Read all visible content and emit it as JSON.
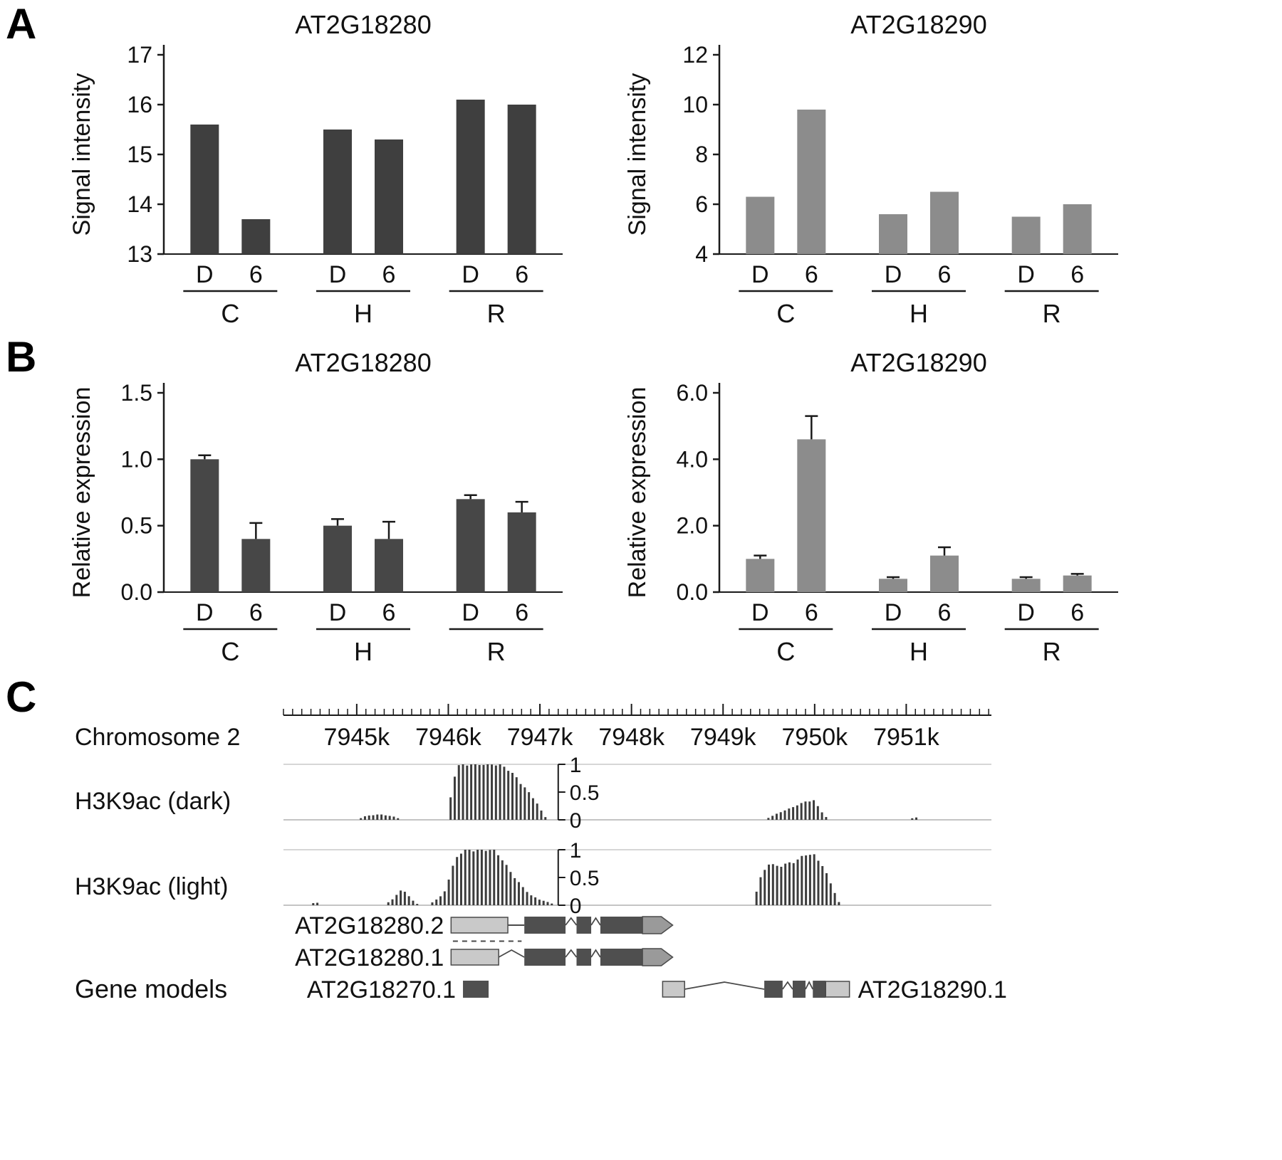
{
  "panel_labels": {
    "a": "A",
    "b": "B",
    "c": "C"
  },
  "chart_data": [
    {
      "panel": "A",
      "position": "left",
      "type": "bar",
      "title": "AT2G18280",
      "ylabel": "Signal intensity",
      "ylim": [
        13,
        17
      ],
      "ytick_values": [
        13,
        14,
        15,
        16,
        17
      ],
      "ytick_labels": [
        "13",
        "14",
        "15",
        "16",
        "17"
      ],
      "bar_color": "#3f3f3f",
      "groups": [
        {
          "label": "C",
          "bars": [
            {
              "label": "D",
              "value": 15.6
            },
            {
              "label": "6",
              "value": 13.7
            }
          ]
        },
        {
          "label": "H",
          "bars": [
            {
              "label": "D",
              "value": 15.5
            },
            {
              "label": "6",
              "value": 15.3
            }
          ]
        },
        {
          "label": "R",
          "bars": [
            {
              "label": "D",
              "value": 16.1
            },
            {
              "label": "6",
              "value": 16.0
            }
          ]
        }
      ]
    },
    {
      "panel": "A",
      "position": "right",
      "type": "bar",
      "title": "AT2G18290",
      "ylabel": "Signal intensity",
      "ylim": [
        4,
        12
      ],
      "ytick_values": [
        4,
        6,
        8,
        10,
        12
      ],
      "ytick_labels": [
        "4",
        "6",
        "8",
        "10",
        "12"
      ],
      "bar_color": "#8c8c8c",
      "groups": [
        {
          "label": "C",
          "bars": [
            {
              "label": "D",
              "value": 6.3
            },
            {
              "label": "6",
              "value": 9.8
            }
          ]
        },
        {
          "label": "H",
          "bars": [
            {
              "label": "D",
              "value": 5.6
            },
            {
              "label": "6",
              "value": 6.5
            }
          ]
        },
        {
          "label": "R",
          "bars": [
            {
              "label": "D",
              "value": 5.5
            },
            {
              "label": "6",
              "value": 6.0
            }
          ]
        }
      ]
    },
    {
      "panel": "B",
      "position": "left",
      "type": "bar",
      "title": "AT2G18280",
      "ylabel": "Relative expression",
      "ylim": [
        0,
        1.5
      ],
      "ytick_values": [
        0,
        0.5,
        1,
        1.5
      ],
      "ytick_labels": [
        "0.0",
        "0.5",
        "1.0",
        "1.5"
      ],
      "bar_color": "#474747",
      "groups": [
        {
          "label": "C",
          "bars": [
            {
              "label": "D",
              "value": 1.0,
              "error": 0.03
            },
            {
              "label": "6",
              "value": 0.4,
              "error": 0.12
            }
          ]
        },
        {
          "label": "H",
          "bars": [
            {
              "label": "D",
              "value": 0.5,
              "error": 0.05
            },
            {
              "label": "6",
              "value": 0.4,
              "error": 0.13
            }
          ]
        },
        {
          "label": "R",
          "bars": [
            {
              "label": "D",
              "value": 0.7,
              "error": 0.03
            },
            {
              "label": "6",
              "value": 0.6,
              "error": 0.08
            }
          ]
        }
      ]
    },
    {
      "panel": "B",
      "position": "right",
      "type": "bar",
      "title": "AT2G18290",
      "ylabel": "Relative expression",
      "ylim": [
        0,
        6
      ],
      "ytick_values": [
        0,
        2,
        4,
        6
      ],
      "ytick_labels": [
        "0.0",
        "2.0",
        "4.0",
        "6.0"
      ],
      "bar_color": "#8c8c8c",
      "groups": [
        {
          "label": "C",
          "bars": [
            {
              "label": "D",
              "value": 1.0,
              "error": 0.1
            },
            {
              "label": "6",
              "value": 4.6,
              "error": 0.7
            }
          ]
        },
        {
          "label": "H",
          "bars": [
            {
              "label": "D",
              "value": 0.4,
              "error": 0.05
            },
            {
              "label": "6",
              "value": 1.1,
              "error": 0.25
            }
          ]
        },
        {
          "label": "R",
          "bars": [
            {
              "label": "D",
              "value": 0.4,
              "error": 0.05
            },
            {
              "label": "6",
              "value": 0.5,
              "error": 0.05
            }
          ]
        }
      ]
    }
  ],
  "genome_browser": {
    "chromosome_label": "Chromosome 2",
    "region_kb": [
      7944.2,
      7951.93
    ],
    "ruler_ticks": [
      {
        "value": 7945,
        "label": "7945k"
      },
      {
        "value": 7946,
        "label": "7946k"
      },
      {
        "value": 7947,
        "label": "7947k"
      },
      {
        "value": 7948,
        "label": "7948k"
      },
      {
        "value": 7949,
        "label": "7949k"
      },
      {
        "value": 7950,
        "label": "7950k"
      },
      {
        "value": 7951,
        "label": "7951k"
      }
    ],
    "signal_scale": {
      "labels": [
        "1",
        "0.5",
        "0"
      ],
      "values": [
        1,
        0.5,
        0
      ]
    },
    "tracks": [
      {
        "name": "H3K9ac (dark)",
        "color": "#3c3c3c",
        "peaks": [
          [
            [
              7945.0,
              0
            ],
            [
              7945.1,
              0.07
            ],
            [
              7945.25,
              0.1
            ],
            [
              7945.4,
              0.06
            ],
            [
              7945.5,
              0
            ]
          ],
          [
            [
              7945.98,
              0
            ],
            [
              7946.02,
              0.35
            ],
            [
              7946.06,
              0.75
            ],
            [
              7946.1,
              0.97
            ],
            [
              7946.15,
              1.0
            ],
            [
              7946.55,
              1.0
            ],
            [
              7946.65,
              0.92
            ],
            [
              7946.75,
              0.75
            ],
            [
              7946.85,
              0.55
            ],
            [
              7946.95,
              0.35
            ],
            [
              7947.02,
              0.15
            ],
            [
              7947.08,
              0
            ]
          ],
          [
            [
              7949.45,
              0
            ],
            [
              7949.6,
              0.12
            ],
            [
              7949.75,
              0.22
            ],
            [
              7949.9,
              0.33
            ],
            [
              7950.0,
              0.35
            ],
            [
              7950.05,
              0.2
            ],
            [
              7950.15,
              0
            ]
          ],
          [
            [
              7951.02,
              0
            ],
            [
              7951.1,
              0.05
            ],
            [
              7951.18,
              0
            ]
          ]
        ]
      },
      {
        "name": "H3K9ac (light)",
        "color": "#3c3c3c",
        "peaks": [
          [
            [
              7944.48,
              0
            ],
            [
              7944.55,
              0.06
            ],
            [
              7944.63,
              0
            ]
          ],
          [
            [
              7945.3,
              0
            ],
            [
              7945.4,
              0.12
            ],
            [
              7945.5,
              0.3
            ],
            [
              7945.6,
              0.1
            ],
            [
              7945.68,
              0
            ]
          ],
          [
            [
              7945.78,
              0
            ],
            [
              7945.85,
              0.08
            ],
            [
              7945.95,
              0.2
            ],
            [
              7946.0,
              0.45
            ],
            [
              7946.05,
              0.7
            ],
            [
              7946.12,
              0.95
            ],
            [
              7946.18,
              1.0
            ],
            [
              7946.5,
              1.0
            ],
            [
              7946.6,
              0.8
            ],
            [
              7946.7,
              0.55
            ],
            [
              7946.8,
              0.35
            ],
            [
              7946.9,
              0.18
            ],
            [
              7947.0,
              0.1
            ],
            [
              7947.1,
              0.05
            ],
            [
              7947.18,
              0
            ]
          ],
          [
            [
              7949.32,
              0
            ],
            [
              7949.42,
              0.55
            ],
            [
              7949.5,
              0.75
            ],
            [
              7949.6,
              0.7
            ],
            [
              7949.7,
              0.75
            ],
            [
              7949.8,
              0.8
            ],
            [
              7949.9,
              0.92
            ],
            [
              7950.0,
              0.9
            ],
            [
              7950.1,
              0.68
            ],
            [
              7950.2,
              0.3
            ],
            [
              7950.28,
              0
            ]
          ]
        ]
      }
    ],
    "gene_models_label": "Gene models",
    "gene_models": [
      {
        "name": "AT2G18280.2",
        "label_side": "left",
        "row": 0,
        "segments": [
          {
            "t": "utr",
            "s": 7946.03,
            "e": 7946.65
          },
          {
            "t": "line",
            "s": 7946.65,
            "e": 7946.83
          },
          {
            "t": "exon",
            "s": 7946.83,
            "e": 7947.28
          },
          {
            "t": "splice",
            "s": 7947.28,
            "e": 7947.4
          },
          {
            "t": "exon",
            "s": 7947.4,
            "e": 7947.56
          },
          {
            "t": "splice",
            "s": 7947.56,
            "e": 7947.66
          },
          {
            "t": "exon",
            "s": 7947.66,
            "e": 7948.12
          },
          {
            "t": "arrow",
            "s": 7948.12,
            "e": 7948.45
          }
        ]
      },
      {
        "name": "",
        "label_side": "none",
        "row": 0.5,
        "segments": [
          {
            "t": "dashed",
            "s": 7946.05,
            "e": 7946.8
          }
        ]
      },
      {
        "name": "AT2G18280.1",
        "label_side": "left",
        "row": 1,
        "segments": [
          {
            "t": "utr",
            "s": 7946.03,
            "e": 7946.55
          },
          {
            "t": "splice",
            "s": 7946.55,
            "e": 7946.83
          },
          {
            "t": "exon",
            "s": 7946.83,
            "e": 7947.28
          },
          {
            "t": "splice",
            "s": 7947.28,
            "e": 7947.4
          },
          {
            "t": "exon",
            "s": 7947.4,
            "e": 7947.56
          },
          {
            "t": "splice",
            "s": 7947.56,
            "e": 7947.66
          },
          {
            "t": "exon",
            "s": 7947.66,
            "e": 7948.12
          },
          {
            "t": "arrow",
            "s": 7948.12,
            "e": 7948.45
          }
        ]
      },
      {
        "name": "AT2G18270.1",
        "label_side": "left",
        "row": 2,
        "segments": [
          {
            "t": "exon",
            "s": 7946.16,
            "e": 7946.44
          }
        ]
      },
      {
        "name": "AT2G18290.1",
        "label_side": "right",
        "row": 2,
        "segments": [
          {
            "t": "utr",
            "s": 7948.34,
            "e": 7948.58
          },
          {
            "t": "splice",
            "s": 7948.58,
            "e": 7949.45
          },
          {
            "t": "exon",
            "s": 7949.45,
            "e": 7949.65
          },
          {
            "t": "splice",
            "s": 7949.65,
            "e": 7949.76
          },
          {
            "t": "exon",
            "s": 7949.76,
            "e": 7949.9
          },
          {
            "t": "splice",
            "s": 7949.9,
            "e": 7949.98
          },
          {
            "t": "exon",
            "s": 7949.98,
            "e": 7950.12
          },
          {
            "t": "utr",
            "s": 7950.12,
            "e": 7950.38
          }
        ]
      }
    ]
  }
}
